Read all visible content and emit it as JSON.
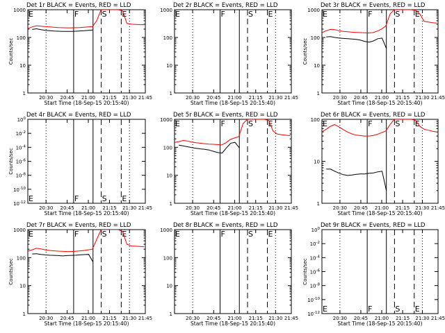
{
  "chart_data": [
    {
      "type": "line",
      "title": "Det 1r BLACK = Events, RED = LLD",
      "ylabel": "Counts/sec",
      "xlabel": "Start Time (18-Sep-15 20:15:40)",
      "yscale": "log",
      "ylim": [
        1,
        1000
      ],
      "ytick_style": "plain",
      "xticks": [
        "20:30",
        "20:45",
        "21:00",
        "21:15",
        "21:30",
        "21:45"
      ],
      "markers": [
        "E",
        "F",
        "S",
        "E"
      ],
      "marker_text_pos": "top",
      "series": [
        {
          "color": "#ff0000",
          "values": [
            210,
            240,
            265,
            255,
            245,
            240,
            235,
            228,
            225,
            222,
            222,
            225,
            228,
            235,
            240,
            245,
            400,
            1000,
            1000,
            1000,
            1000,
            1000,
            900,
            320,
            300,
            295,
            290,
            285
          ]
        },
        {
          "color": "#000000",
          "values": [
            null,
            195,
            205,
            190,
            180,
            175,
            170,
            168,
            166,
            165,
            166,
            168,
            172,
            175,
            180,
            185
          ]
        }
      ]
    },
    {
      "type": "line",
      "title": "Det 2r BLACK = Events, RED = LLD",
      "ylabel": "",
      "xlabel": "Start Time (18-Sep-15 20:15:40)",
      "yscale": "log",
      "ylim": [
        1,
        1000
      ],
      "ytick_style": "plain",
      "xticks": [
        "20:30",
        "20:45",
        "21:00",
        "21:15",
        "21:30",
        "21:45"
      ],
      "markers": [
        "E",
        "F",
        "S",
        "E"
      ],
      "marker_text_pos": "top",
      "series": []
    },
    {
      "type": "line",
      "title": "Det 3r BLACK = Events, RED = LLD",
      "ylabel": "Counts/sec",
      "xlabel": "Start Time (18-Sep-15 20:15:40)",
      "yscale": "log",
      "ylim": [
        1,
        1000
      ],
      "ytick_style": "plain",
      "xticks": [
        "20:30",
        "20:45",
        "21:00",
        "21:15",
        "21:30",
        "21:45"
      ],
      "markers": [
        "E",
        "F",
        "S",
        "E"
      ],
      "marker_text_pos": "top",
      "series": [
        {
          "color": "#ff0000",
          "values": [
            150,
            175,
            195,
            190,
            175,
            165,
            160,
            155,
            152,
            150,
            148,
            145,
            150,
            170,
            200,
            260,
            700,
            1000,
            1000,
            1000,
            1000,
            1000,
            950,
            700,
            380,
            360,
            340,
            330
          ]
        },
        {
          "color": "#000000",
          "values": [
            null,
            105,
            108,
            100,
            95,
            92,
            90,
            88,
            85,
            80,
            72,
            68,
            75,
            90,
            95,
            40
          ]
        }
      ]
    },
    {
      "type": "line",
      "title": "Det 4r BLACK = Events, RED = LLD",
      "ylabel": "Counts/sec",
      "xlabel": "Start Time (18-Sep-15 20:15:40)",
      "yscale": "log",
      "ylim": [
        1e-12,
        1
      ],
      "ytick_style": "exp",
      "xticks": [
        "20:30",
        "20:45",
        "21:00",
        "21:15",
        "21:30",
        "21:45"
      ],
      "markers": [
        "E",
        "F",
        "S",
        "E"
      ],
      "marker_text_pos": "bottom",
      "series": []
    },
    {
      "type": "line",
      "title": "Det 5r BLACK = Events, RED = LLD",
      "ylabel": "",
      "xlabel": "Start Time (18-Sep-15 20:15:40)",
      "yscale": "log",
      "ylim": [
        1,
        1000
      ],
      "ytick_style": "plain",
      "xticks": [
        "20:30",
        "20:45",
        "21:00",
        "21:15",
        "21:30",
        "21:45"
      ],
      "markers": [
        "E",
        "F",
        "S",
        "E"
      ],
      "marker_text_pos": "top",
      "series": [
        {
          "color": "#ff0000",
          "values": [
            150,
            160,
            175,
            168,
            155,
            145,
            140,
            135,
            130,
            128,
            125,
            122,
            145,
            190,
            215,
            240,
            700,
            1000,
            1000,
            1000,
            1000,
            1000,
            900,
            380,
            300,
            280,
            270,
            260
          ]
        },
        {
          "color": "#000000",
          "values": [
            null,
            120,
            112,
            105,
            98,
            92,
            88,
            85,
            80,
            72,
            65,
            62,
            95,
            140,
            150,
            95
          ]
        }
      ]
    },
    {
      "type": "line",
      "title": "Det 6r BLACK = Events, RED = LLD",
      "ylabel": "",
      "xlabel": "Start Time (18-Sep-15 20:15:40)",
      "yscale": "log",
      "ylim": [
        1,
        100
      ],
      "ytick_style": "plain",
      "xticks": [
        "20:30",
        "20:45",
        "21:00",
        "21:15",
        "21:30",
        "21:45"
      ],
      "markers": [
        "E",
        "F",
        "S",
        "E"
      ],
      "marker_text_pos": "top",
      "series": [
        {
          "color": "#ff0000",
          "values": [
            50,
            58,
            68,
            75,
            66,
            57,
            50,
            45,
            42,
            41,
            40,
            40,
            41,
            44,
            48,
            53,
            75,
            100,
            100,
            100,
            100,
            100,
            95,
            68,
            58,
            55,
            52,
            50
          ]
        },
        {
          "color": "#000000",
          "values": [
            null,
            6.5,
            6.5,
            5.8,
            5.2,
            4.8,
            4.6,
            4.7,
            4.9,
            5.0,
            5.0,
            5.2,
            5.3,
            5.6,
            5.8,
            2.0
          ]
        }
      ]
    },
    {
      "type": "line",
      "title": "Det 7r BLACK = Events, RED = LLD",
      "ylabel": "Counts/sec",
      "xlabel": "Start Time (18-Sep-15 20:15:40)",
      "yscale": "log",
      "ylim": [
        1,
        1000
      ],
      "ytick_style": "plain",
      "xticks": [
        "20:30",
        "20:45",
        "21:00",
        "21:15",
        "21:30",
        "21:45"
      ],
      "markers": [
        "E",
        "F",
        "S",
        "E"
      ],
      "marker_text_pos": "top",
      "series": [
        {
          "color": "#ff0000",
          "values": [
            170,
            190,
            215,
            205,
            190,
            180,
            175,
            170,
            168,
            165,
            165,
            168,
            172,
            180,
            190,
            200,
            450,
            1000,
            1000,
            1000,
            1000,
            1000,
            850,
            300,
            260,
            255,
            250,
            245
          ]
        },
        {
          "color": "#000000",
          "values": [
            null,
            135,
            138,
            130,
            125,
            122,
            120,
            118,
            115,
            118,
            120,
            122,
            125,
            128,
            130,
            70
          ]
        }
      ]
    },
    {
      "type": "line",
      "title": "Det 8r BLACK = Events, RED = LLD",
      "ylabel": "",
      "xlabel": "Start Time (18-Sep-15 20:15:40)",
      "yscale": "log",
      "ylim": [
        1,
        1000
      ],
      "ytick_style": "plain",
      "xticks": [
        "20:30",
        "20:45",
        "21:00",
        "21:15",
        "21:30",
        "21:45"
      ],
      "markers": [
        "E",
        "F",
        "S",
        "E"
      ],
      "marker_text_pos": "top",
      "series": []
    },
    {
      "type": "line",
      "title": "Det 9r BLACK = Events, RED = LLD",
      "ylabel": "Counts/sec",
      "xlabel": "Start Time (18-Sep-15 20:15:40)",
      "yscale": "log",
      "ylim": [
        1e-12,
        1
      ],
      "ytick_style": "exp",
      "xticks": [
        "20:30",
        "20:45",
        "21:00",
        "21:15",
        "21:30",
        "21:45"
      ],
      "markers": [
        "E",
        "F",
        "S",
        "E"
      ],
      "marker_text_pos": "bottom",
      "series": []
    }
  ]
}
